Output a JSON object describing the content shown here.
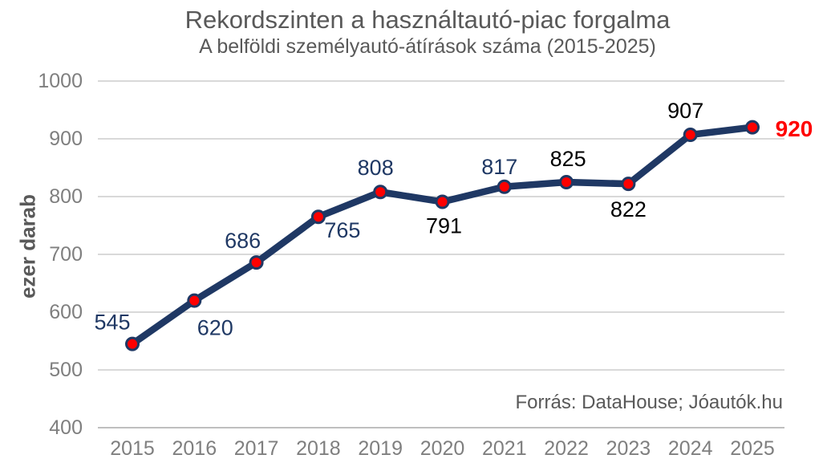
{
  "chart_data": {
    "type": "line",
    "title": "Rekordszinten a használtautó-piac forgalma",
    "subtitle": "A belföldi személyautó-átírások száma (2015-2025)",
    "ylabel": "ezer darab",
    "categories": [
      "2015",
      "2016",
      "2017",
      "2018",
      "2019",
      "2020",
      "2021",
      "2022",
      "2023",
      "2024",
      "2025"
    ],
    "values": [
      545,
      620,
      686,
      765,
      808,
      791,
      817,
      825,
      822,
      907,
      920
    ],
    "ylim": [
      400,
      1000
    ],
    "yticks": [
      400,
      500,
      600,
      700,
      800,
      900,
      1000
    ],
    "grid": true,
    "legend": false,
    "label_colors": [
      "navy",
      "navy",
      "navy",
      "navy",
      "navy",
      "black",
      "navy",
      "black",
      "black",
      "black",
      "highlight"
    ]
  },
  "source": "Forrás: DataHouse; Jóautók.hu",
  "colors": {
    "line": "#1f3864",
    "marker_fill": "#ff0000",
    "marker_stroke": "#1f3864",
    "label_navy": "#1f3864",
    "label_black": "#000000",
    "label_highlight": "#ff0000",
    "title_text": "#595959",
    "axis_text": "#7f7f7f",
    "gridline": "#d9d9d9",
    "axis_line": "#bfbfbf",
    "source_text": "#595959"
  }
}
